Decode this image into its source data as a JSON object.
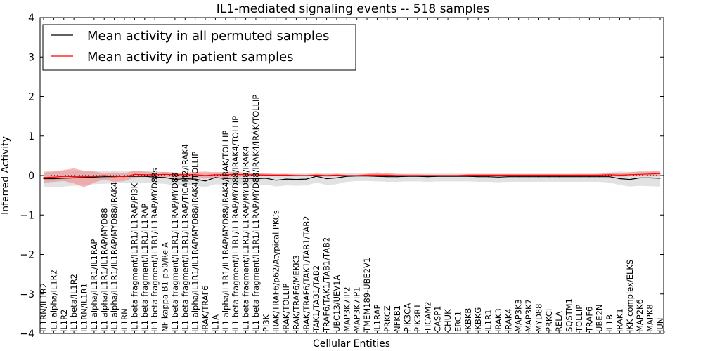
{
  "chart_data": {
    "type": "line",
    "title": "IL1-mediated signaling events -- 518 samples",
    "xlabel": "Cellular Entities",
    "ylabel": "Inferred Activity",
    "ylim": [
      -4,
      4
    ],
    "yticks": [
      -4,
      -3,
      -2,
      -1,
      0,
      1,
      2,
      3,
      4
    ],
    "legend_position": "top-left",
    "grid": false,
    "categories": [
      "IL1RN/IL1R2",
      "IL1 alpha/IL1R2",
      "IL1R2",
      "IL1 beta/IL1R2",
      "IL1RN/IL1R1",
      "IL1 alpha/IL1R1/IL1RAP",
      "IL1 alpha/IL1R1/IL1RAP/MYD88",
      "IL1 alpha/IL1R1/IL1RAP/MYD88/IRAK4",
      "IL1RN",
      "IL1 beta fragment/IL1R1/IL1RAP/PI3K",
      "IL1 beta fragment/IL1R1/IL1RAP",
      "IL1 beta fragment/IL1R1/IL1RAP/MYD88s",
      "NF kappa B1 p50/RelA",
      "IL1 beta fragment/IL1R1/IL1RAP/MYD88",
      "IL1 beta fragment/IL1R1/IL1RAP/TICAM2/IRAK4",
      "IL1 alpha/IL1R1/IL1RAP/MYD88/IRAK4/TOLLIP",
      "IRAK/TRAF6",
      "IL1A",
      "IL1 alpha/IL1R1/IL1RAP/MYD88/IRAK4/IRAK/TOLLIP",
      "IL1 beta fragment/IL1R1/IL1RAP/MYD88/IRAK4/TOLLIP",
      "IL1 beta fragment/IL1R1/IL1RAP/MYD88/IRAK4",
      "IL1 beta fragment/IL1R1/IL1RAP/MYD88/IRAK4/IRAK/TOLLIP",
      "PI3K",
      "IRAK/TRAF6/p62/Atypical PKCs",
      "IRAK/TOLLIP",
      "IRAK/TRAF6/MEKK3",
      "IRAK/TRAF6/TAK1/TAB1/TAB2",
      "TAK1/TAB1/TAB2",
      "TRAF6/TAK1/TAB1/TAB2",
      "UBC13/UEV1A",
      "MAP3K7IP2",
      "MAP3K7IP1",
      "TMEM189-UBE2V1",
      "IL1RAP",
      "PRKCZ",
      "NFKB1",
      "PIK3CA",
      "PIK3R1",
      "TICAM2",
      "CASP1",
      "CHUK",
      "ERC1",
      "IKBKB",
      "IKBKG",
      "IL1R1",
      "IRAK3",
      "IRAK4",
      "MAP3K3",
      "MAP3K7",
      "MYD88",
      "PRKCI",
      "RELA",
      "SQSTM1",
      "TOLLIP",
      "TRAF6",
      "UBE2N",
      "IL1B",
      "IRAK1",
      "IKK complex/ELKS",
      "MAP2K6",
      "MAPK8",
      "JUN"
    ],
    "series": [
      {
        "name": "Mean activity in all permuted samples",
        "color": "#000000",
        "band_color": "#bfbfbf",
        "values": [
          -0.08,
          -0.08,
          -0.07,
          -0.06,
          -0.05,
          -0.04,
          -0.03,
          -0.03,
          -0.02,
          -0.02,
          -0.02,
          -0.04,
          -0.05,
          -0.1,
          -0.08,
          -0.09,
          -0.14,
          -0.05,
          -0.08,
          -0.06,
          -0.07,
          -0.08,
          -0.07,
          -0.12,
          -0.09,
          -0.1,
          -0.09,
          -0.02,
          -0.08,
          -0.06,
          -0.02,
          -0.01,
          -0.01,
          -0.02,
          -0.03,
          -0.03,
          -0.02,
          -0.02,
          -0.03,
          -0.02,
          -0.02,
          -0.02,
          -0.02,
          -0.03,
          -0.03,
          -0.04,
          -0.03,
          -0.03,
          -0.03,
          -0.03,
          -0.03,
          -0.03,
          -0.03,
          -0.03,
          -0.03,
          -0.03,
          -0.03,
          -0.08,
          -0.1,
          -0.06,
          -0.06,
          -0.07
        ],
        "lower": [
          -0.3,
          -0.3,
          -0.28,
          -0.26,
          -0.24,
          -0.22,
          -0.21,
          -0.2,
          -0.18,
          -0.18,
          -0.18,
          -0.2,
          -0.21,
          -0.26,
          -0.24,
          -0.25,
          -0.3,
          -0.22,
          -0.24,
          -0.22,
          -0.23,
          -0.24,
          -0.23,
          -0.28,
          -0.25,
          -0.26,
          -0.25,
          -0.18,
          -0.24,
          -0.22,
          -0.16,
          -0.14,
          -0.14,
          -0.15,
          -0.16,
          -0.16,
          -0.15,
          -0.15,
          -0.16,
          -0.15,
          -0.15,
          -0.15,
          -0.15,
          -0.16,
          -0.16,
          -0.17,
          -0.16,
          -0.16,
          -0.16,
          -0.16,
          -0.16,
          -0.16,
          -0.16,
          -0.16,
          -0.16,
          -0.16,
          -0.18,
          -0.24,
          -0.28,
          -0.26,
          -0.27,
          -0.28
        ],
        "upper": [
          0.12,
          0.12,
          0.13,
          0.13,
          0.12,
          0.12,
          0.12,
          0.12,
          0.12,
          0.11,
          0.11,
          0.1,
          0.09,
          0.07,
          0.07,
          0.07,
          0.05,
          0.09,
          0.07,
          0.08,
          0.08,
          0.07,
          0.07,
          0.04,
          0.05,
          0.05,
          0.05,
          0.08,
          0.06,
          0.06,
          0.06,
          0.06,
          0.06,
          0.05,
          0.05,
          0.05,
          0.05,
          0.05,
          0.05,
          0.05,
          0.05,
          0.05,
          0.05,
          0.05,
          0.05,
          0.05,
          0.05,
          0.05,
          0.05,
          0.05,
          0.05,
          0.05,
          0.05,
          0.06,
          0.07,
          0.07,
          0.08,
          0.1,
          0.09,
          0.1,
          0.1,
          0.1
        ]
      },
      {
        "name": "Mean activity in patient samples",
        "color": "#ff0000",
        "band_color": "#f08080",
        "values": [
          -0.05,
          -0.04,
          -0.02,
          -0.03,
          -0.03,
          -0.02,
          0.0,
          -0.02,
          -0.03,
          0.03,
          0.02,
          0.02,
          0.03,
          0.02,
          0.02,
          0.02,
          0.0,
          0.02,
          0.02,
          0.03,
          0.02,
          0.02,
          0.01,
          0.01,
          0.01,
          0.0,
          0.0,
          0.01,
          0.0,
          0.01,
          0.0,
          0.0,
          0.01,
          0.01,
          0.01,
          0.0,
          0.0,
          0.0,
          0.0,
          0.0,
          0.0,
          0.0,
          0.01,
          0.01,
          0.01,
          0.01,
          0.01,
          0.01,
          0.01,
          0.01,
          0.01,
          0.01,
          0.01,
          0.01,
          0.01,
          0.01,
          0.02,
          0.01,
          0.02,
          0.03,
          0.04,
          0.05
        ],
        "lower": [
          -0.18,
          -0.16,
          -0.14,
          -0.2,
          -0.3,
          -0.18,
          -0.1,
          -0.16,
          -0.14,
          -0.05,
          -0.04,
          -0.04,
          -0.03,
          -0.05,
          -0.04,
          -0.06,
          -0.08,
          -0.04,
          -0.05,
          -0.03,
          -0.03,
          -0.02,
          -0.02,
          -0.02,
          -0.02,
          -0.02,
          -0.02,
          -0.02,
          -0.03,
          -0.02,
          -0.02,
          -0.02,
          -0.02,
          -0.03,
          -0.04,
          -0.02,
          -0.02,
          -0.02,
          -0.02,
          -0.02,
          -0.02,
          -0.02,
          -0.02,
          -0.02,
          -0.02,
          -0.02,
          -0.02,
          -0.02,
          -0.02,
          -0.02,
          -0.02,
          -0.02,
          -0.02,
          -0.02,
          -0.02,
          -0.02,
          -0.02,
          -0.03,
          -0.02,
          -0.02,
          0.0,
          0.0
        ],
        "upper": [
          0.08,
          0.1,
          0.14,
          0.18,
          0.12,
          0.1,
          0.06,
          0.08,
          0.06,
          0.12,
          0.1,
          0.08,
          0.09,
          0.08,
          0.07,
          0.09,
          0.1,
          0.08,
          0.09,
          0.1,
          0.07,
          0.06,
          0.05,
          0.04,
          0.04,
          0.03,
          0.02,
          0.04,
          0.03,
          0.04,
          0.02,
          0.02,
          0.04,
          0.08,
          0.06,
          0.04,
          0.03,
          0.03,
          0.02,
          0.02,
          0.02,
          0.02,
          0.03,
          0.03,
          0.03,
          0.03,
          0.03,
          0.03,
          0.03,
          0.03,
          0.03,
          0.03,
          0.03,
          0.03,
          0.03,
          0.04,
          0.07,
          0.06,
          0.08,
          0.1,
          0.1,
          0.12
        ]
      }
    ]
  }
}
